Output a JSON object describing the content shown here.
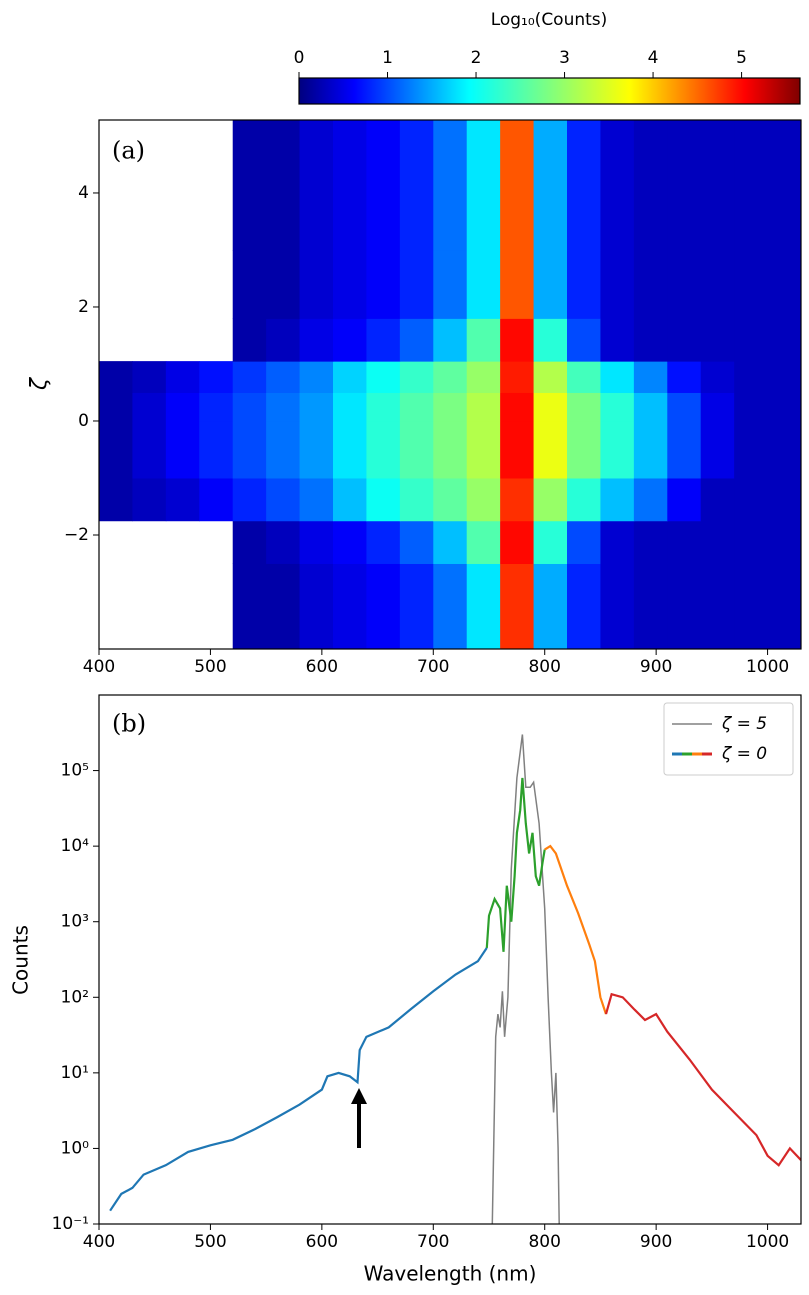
{
  "chart_data": [
    {
      "type": "heatmap",
      "annotation": "(a)",
      "ylabel": "ζ",
      "colorbar_label": "Log₁₀(Counts)",
      "x_edges": [
        400,
        430,
        460,
        490,
        520,
        550,
        580,
        610,
        640,
        670,
        700,
        730,
        760,
        790,
        820,
        850,
        880,
        910,
        940,
        970,
        1000,
        1030
      ],
      "y_edges": [
        -4,
        -2.5,
        -1.75,
        -1,
        0,
        0.5,
        1.05,
        1.8,
        3,
        5.28
      ],
      "values": [
        [
          null,
          null,
          null,
          null,
          0.2,
          0.2,
          0.4,
          0.5,
          0.6,
          0.8,
          1.2,
          1.8,
          4.8,
          1.5,
          0.8,
          0.4,
          0.3,
          0.3,
          0.3,
          0.3,
          0.3
        ],
        [
          null,
          null,
          null,
          null,
          0.2,
          0.3,
          0.5,
          0.6,
          0.8,
          1.1,
          1.6,
          2.5,
          5.0,
          2.2,
          1.0,
          0.4,
          0.3,
          0.3,
          0.3,
          0.3,
          0.3
        ],
        [
          0.2,
          0.3,
          0.4,
          0.6,
          0.8,
          1.0,
          1.2,
          1.6,
          2.0,
          2.3,
          2.6,
          3.0,
          4.8,
          3.0,
          2.2,
          1.6,
          1.2,
          0.6,
          0.3,
          0.3,
          0.3
        ],
        [
          0.2,
          0.4,
          0.6,
          0.8,
          1.0,
          1.2,
          1.4,
          1.8,
          2.2,
          2.5,
          2.8,
          3.2,
          5.0,
          3.6,
          2.8,
          2.2,
          1.6,
          1.0,
          0.5,
          0.3,
          0.3
        ],
        [
          0.2,
          0.4,
          0.6,
          0.8,
          1.0,
          1.2,
          1.4,
          1.8,
          2.2,
          2.5,
          2.8,
          3.2,
          5.0,
          3.6,
          2.8,
          2.2,
          1.6,
          1.0,
          0.5,
          0.3,
          0.3
        ],
        [
          0.2,
          0.3,
          0.5,
          0.7,
          0.9,
          1.1,
          1.3,
          1.7,
          2.0,
          2.3,
          2.6,
          3.0,
          4.9,
          3.2,
          2.4,
          1.8,
          1.3,
          0.7,
          0.4,
          0.3,
          0.3
        ],
        [
          null,
          null,
          null,
          null,
          0.2,
          0.3,
          0.5,
          0.6,
          0.8,
          1.1,
          1.6,
          2.5,
          5.0,
          2.2,
          1.0,
          0.4,
          0.3,
          0.3,
          0.3,
          0.3,
          0.3
        ],
        [
          null,
          null,
          null,
          null,
          0.2,
          0.2,
          0.4,
          0.5,
          0.6,
          0.8,
          1.2,
          1.8,
          4.6,
          1.5,
          0.8,
          0.4,
          0.3,
          0.3,
          0.3,
          0.3,
          0.3
        ],
        [
          null,
          null,
          null,
          null,
          0.2,
          0.2,
          0.4,
          0.5,
          0.6,
          0.8,
          1.2,
          1.8,
          4.6,
          1.5,
          0.8,
          0.4,
          0.3,
          0.3,
          0.3,
          0.3,
          0.3
        ]
      ],
      "colormap": "jet",
      "clim": [
        0,
        5.66
      ],
      "cticks": [
        0,
        1,
        2,
        3,
        4,
        5
      ],
      "xlim": [
        400,
        1030
      ],
      "xticks": [
        400,
        500,
        600,
        700,
        800,
        900,
        1000
      ],
      "ylim": [
        -4,
        5.28
      ],
      "yticks": [
        {
          "value": -2,
          "label": "−2"
        },
        0,
        2,
        4
      ]
    },
    {
      "type": "line",
      "annotation": "(b)",
      "xlabel": "Wavelength (nm)",
      "ylabel": "Counts",
      "log_y": true,
      "legend": "upper right",
      "xlim": [
        400,
        1030
      ],
      "xticks": [
        400,
        500,
        600,
        700,
        800,
        900,
        1000
      ],
      "ylim": [
        0.1,
        1000000
      ],
      "yticks": [
        {
          "value": 0.1,
          "label": "10⁻¹"
        },
        {
          "value": 1,
          "label": "10⁰"
        },
        {
          "value": 10,
          "label": "10¹"
        },
        {
          "value": 100,
          "label": "10²"
        },
        {
          "value": 1000,
          "label": "10³"
        },
        {
          "value": 10000,
          "label": "10⁴"
        },
        {
          "value": 100000,
          "label": "10⁵"
        }
      ],
      "series": [
        {
          "name": "ζ = 5",
          "color": "#808080",
          "x": [
            753,
            756,
            758,
            760,
            762,
            764,
            767,
            770,
            775,
            780,
            783,
            787,
            790,
            795,
            800,
            803,
            806,
            808,
            810,
            812,
            813
          ],
          "values": [
            0.1,
            30,
            60,
            40,
            120,
            30,
            100,
            5000,
            80000,
            300000,
            60000,
            60000,
            70000,
            20000,
            1500,
            100,
            10,
            3,
            10,
            1,
            0.1
          ]
        },
        {
          "name": "ζ = 0",
          "segments": [
            {
              "color": "#1f77b4",
              "x": [
                410,
                420,
                430,
                440,
                460,
                480,
                500,
                520,
                540,
                560,
                580,
                600,
                605,
                615,
                625,
                632,
                634,
                640,
                660,
                680,
                700,
                720,
                740,
                748
              ],
              "values": [
                0.15,
                0.25,
                0.3,
                0.45,
                0.6,
                0.9,
                1.1,
                1.3,
                1.8,
                2.6,
                3.8,
                6,
                9,
                10,
                9,
                7.5,
                20,
                30,
                40,
                70,
                120,
                200,
                300,
                450
              ]
            },
            {
              "color": "#2ca02c",
              "x": [
                748,
                750,
                755,
                760,
                763,
                766,
                770,
                773,
                775,
                778,
                780,
                783,
                786,
                789,
                792,
                795,
                798,
                800
              ],
              "values": [
                450,
                1200,
                2000,
                1500,
                400,
                3000,
                1000,
                4000,
                15000,
                30000,
                80000,
                20000,
                8000,
                15000,
                4000,
                3000,
                6000,
                9000
              ]
            },
            {
              "color": "#ff7f0e",
              "x": [
                800,
                805,
                810,
                820,
                830,
                840,
                845,
                850,
                855
              ],
              "values": [
                9000,
                10000,
                8000,
                3000,
                1300,
                500,
                300,
                100,
                60
              ]
            },
            {
              "color": "#d62728",
              "x": [
                855,
                860,
                870,
                880,
                890,
                900,
                910,
                930,
                950,
                970,
                990,
                1000,
                1010,
                1020,
                1030
              ],
              "values": [
                60,
                110,
                100,
                70,
                50,
                60,
                35,
                15,
                6,
                3,
                1.5,
                0.8,
                0.6,
                1.0,
                0.7
              ]
            }
          ]
        }
      ]
    }
  ]
}
